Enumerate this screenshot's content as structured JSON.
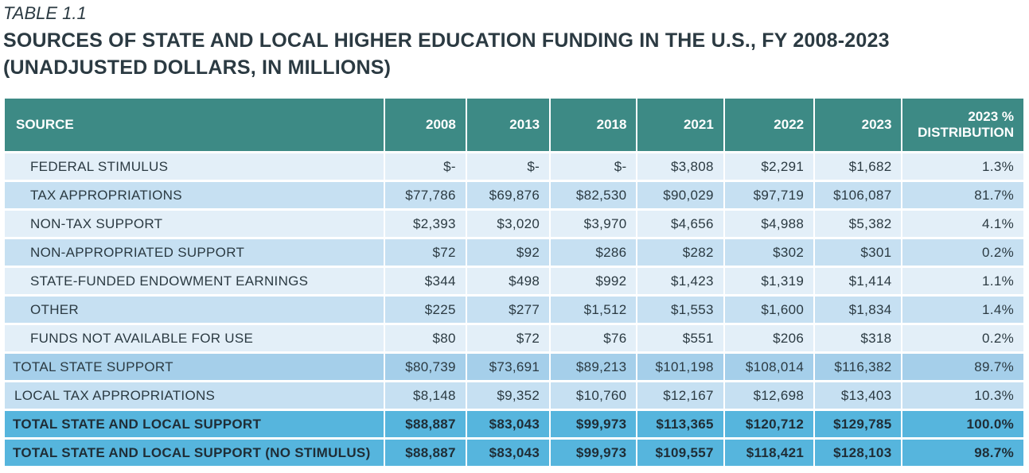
{
  "table_label": "TABLE 1.1",
  "title_line1": "SOURCES OF STATE AND LOCAL HIGHER EDUCATION FUNDING IN THE U.S., FY 2008-2023",
  "title_line2": "(UNADJUSTED DOLLARS, IN MILLIONS)",
  "columns": [
    "SOURCE",
    "2008",
    "2013",
    "2018",
    "2021",
    "2022",
    "2023",
    "2023 %",
    "DISTRIBUTION"
  ],
  "rows": [
    [
      "FEDERAL STIMULUS",
      "$-",
      "$-",
      "$-",
      "$3,808",
      "$2,291",
      "$1,682",
      "1.3%"
    ],
    [
      "TAX APPROPRIATIONS",
      "$77,786",
      "$69,876",
      "$82,530",
      "$90,029",
      "$97,719",
      "$106,087",
      "81.7%"
    ],
    [
      "NON-TAX SUPPORT",
      "$2,393",
      "$3,020",
      "$3,970",
      "$4,656",
      "$4,988",
      "$5,382",
      "4.1%"
    ],
    [
      "NON-APPROPRIATED SUPPORT",
      "$72",
      "$92",
      "$286",
      "$282",
      "$302",
      "$301",
      "0.2%"
    ],
    [
      "STATE-FUNDED ENDOWMENT EARNINGS",
      "$344",
      "$498",
      "$992",
      "$1,423",
      "$1,319",
      "$1,414",
      "1.1%"
    ],
    [
      "OTHER",
      "$225",
      "$277",
      "$1,512",
      "$1,553",
      "$1,600",
      "$1,834",
      "1.4%"
    ],
    [
      "FUNDS NOT AVAILABLE FOR USE",
      "$80",
      "$72",
      "$76",
      "$551",
      "$206",
      "$318",
      "0.2%"
    ],
    [
      "TOTAL STATE SUPPORT",
      "$80,739",
      "$73,691",
      "$89,213",
      "$101,198",
      "$108,014",
      "$116,382",
      "89.7%"
    ],
    [
      "LOCAL TAX APPROPRIATIONS",
      "$8,148",
      "$9,352",
      "$10,760",
      "$12,167",
      "$12,698",
      "$13,403",
      "10.3%"
    ],
    [
      "TOTAL STATE AND LOCAL SUPPORT",
      "$88,887",
      "$83,043",
      "$99,973",
      "$113,365",
      "$120,712",
      "$129,785",
      "100.0%"
    ],
    [
      "TOTAL STATE AND LOCAL SUPPORT (NO STIMULUS)",
      "$88,887",
      "$83,043",
      "$99,973",
      "$109,557",
      "$118,421",
      "$128,103",
      "98.7%"
    ]
  ],
  "colors": {
    "header": "#3d8a85",
    "row_light": "#e3eff8",
    "row_mid": "#c6e0f2",
    "row_total": "#a5cfea",
    "row_grand": "#56b5dd"
  }
}
